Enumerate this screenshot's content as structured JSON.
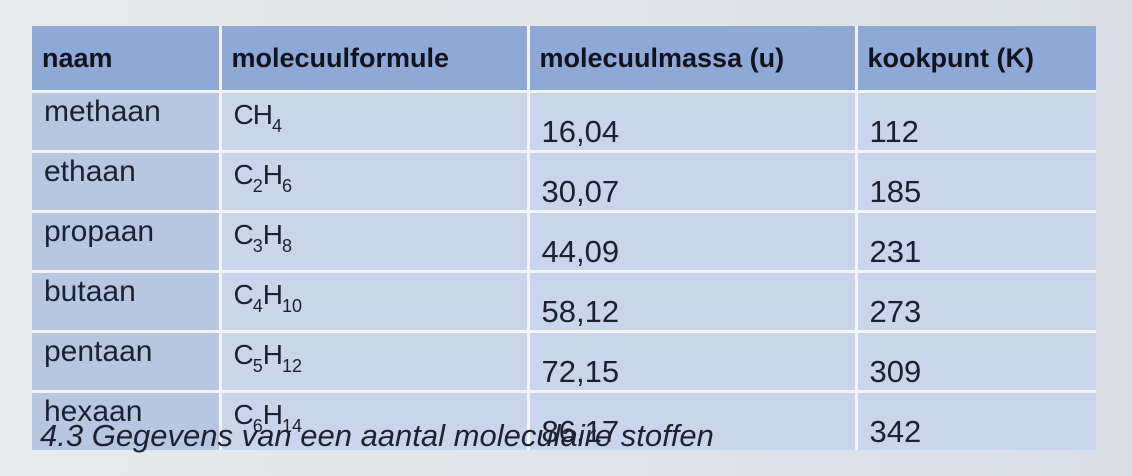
{
  "table": {
    "headers": [
      "naam",
      "molecuulformule",
      "molecuulmassa (u)",
      "kookpunt (K)"
    ],
    "rows": [
      {
        "naam": "methaan",
        "formula": [
          [
            "C",
            ""
          ],
          [
            "H",
            "4"
          ]
        ],
        "mass": "16,04",
        "bp": "112"
      },
      {
        "naam": "ethaan",
        "formula": [
          [
            "C",
            "2"
          ],
          [
            "H",
            "6"
          ]
        ],
        "mass": "30,07",
        "bp": "185"
      },
      {
        "naam": "propaan",
        "formula": [
          [
            "C",
            "3"
          ],
          [
            "H",
            "8"
          ]
        ],
        "mass": "44,09",
        "bp": "231"
      },
      {
        "naam": "butaan",
        "formula": [
          [
            "C",
            "4"
          ],
          [
            "H",
            "10"
          ]
        ],
        "mass": "58,12",
        "bp": "273"
      },
      {
        "naam": "pentaan",
        "formula": [
          [
            "C",
            "5"
          ],
          [
            "H",
            "12"
          ]
        ],
        "mass": "72,15",
        "bp": "309"
      },
      {
        "naam": "hexaan",
        "formula": [
          [
            "C",
            "6"
          ],
          [
            "H",
            "14"
          ]
        ],
        "mass": "86,17",
        "bp": "342"
      }
    ]
  },
  "caption": "4.3 Gegevens van een aantal moleculaire stoffen"
}
